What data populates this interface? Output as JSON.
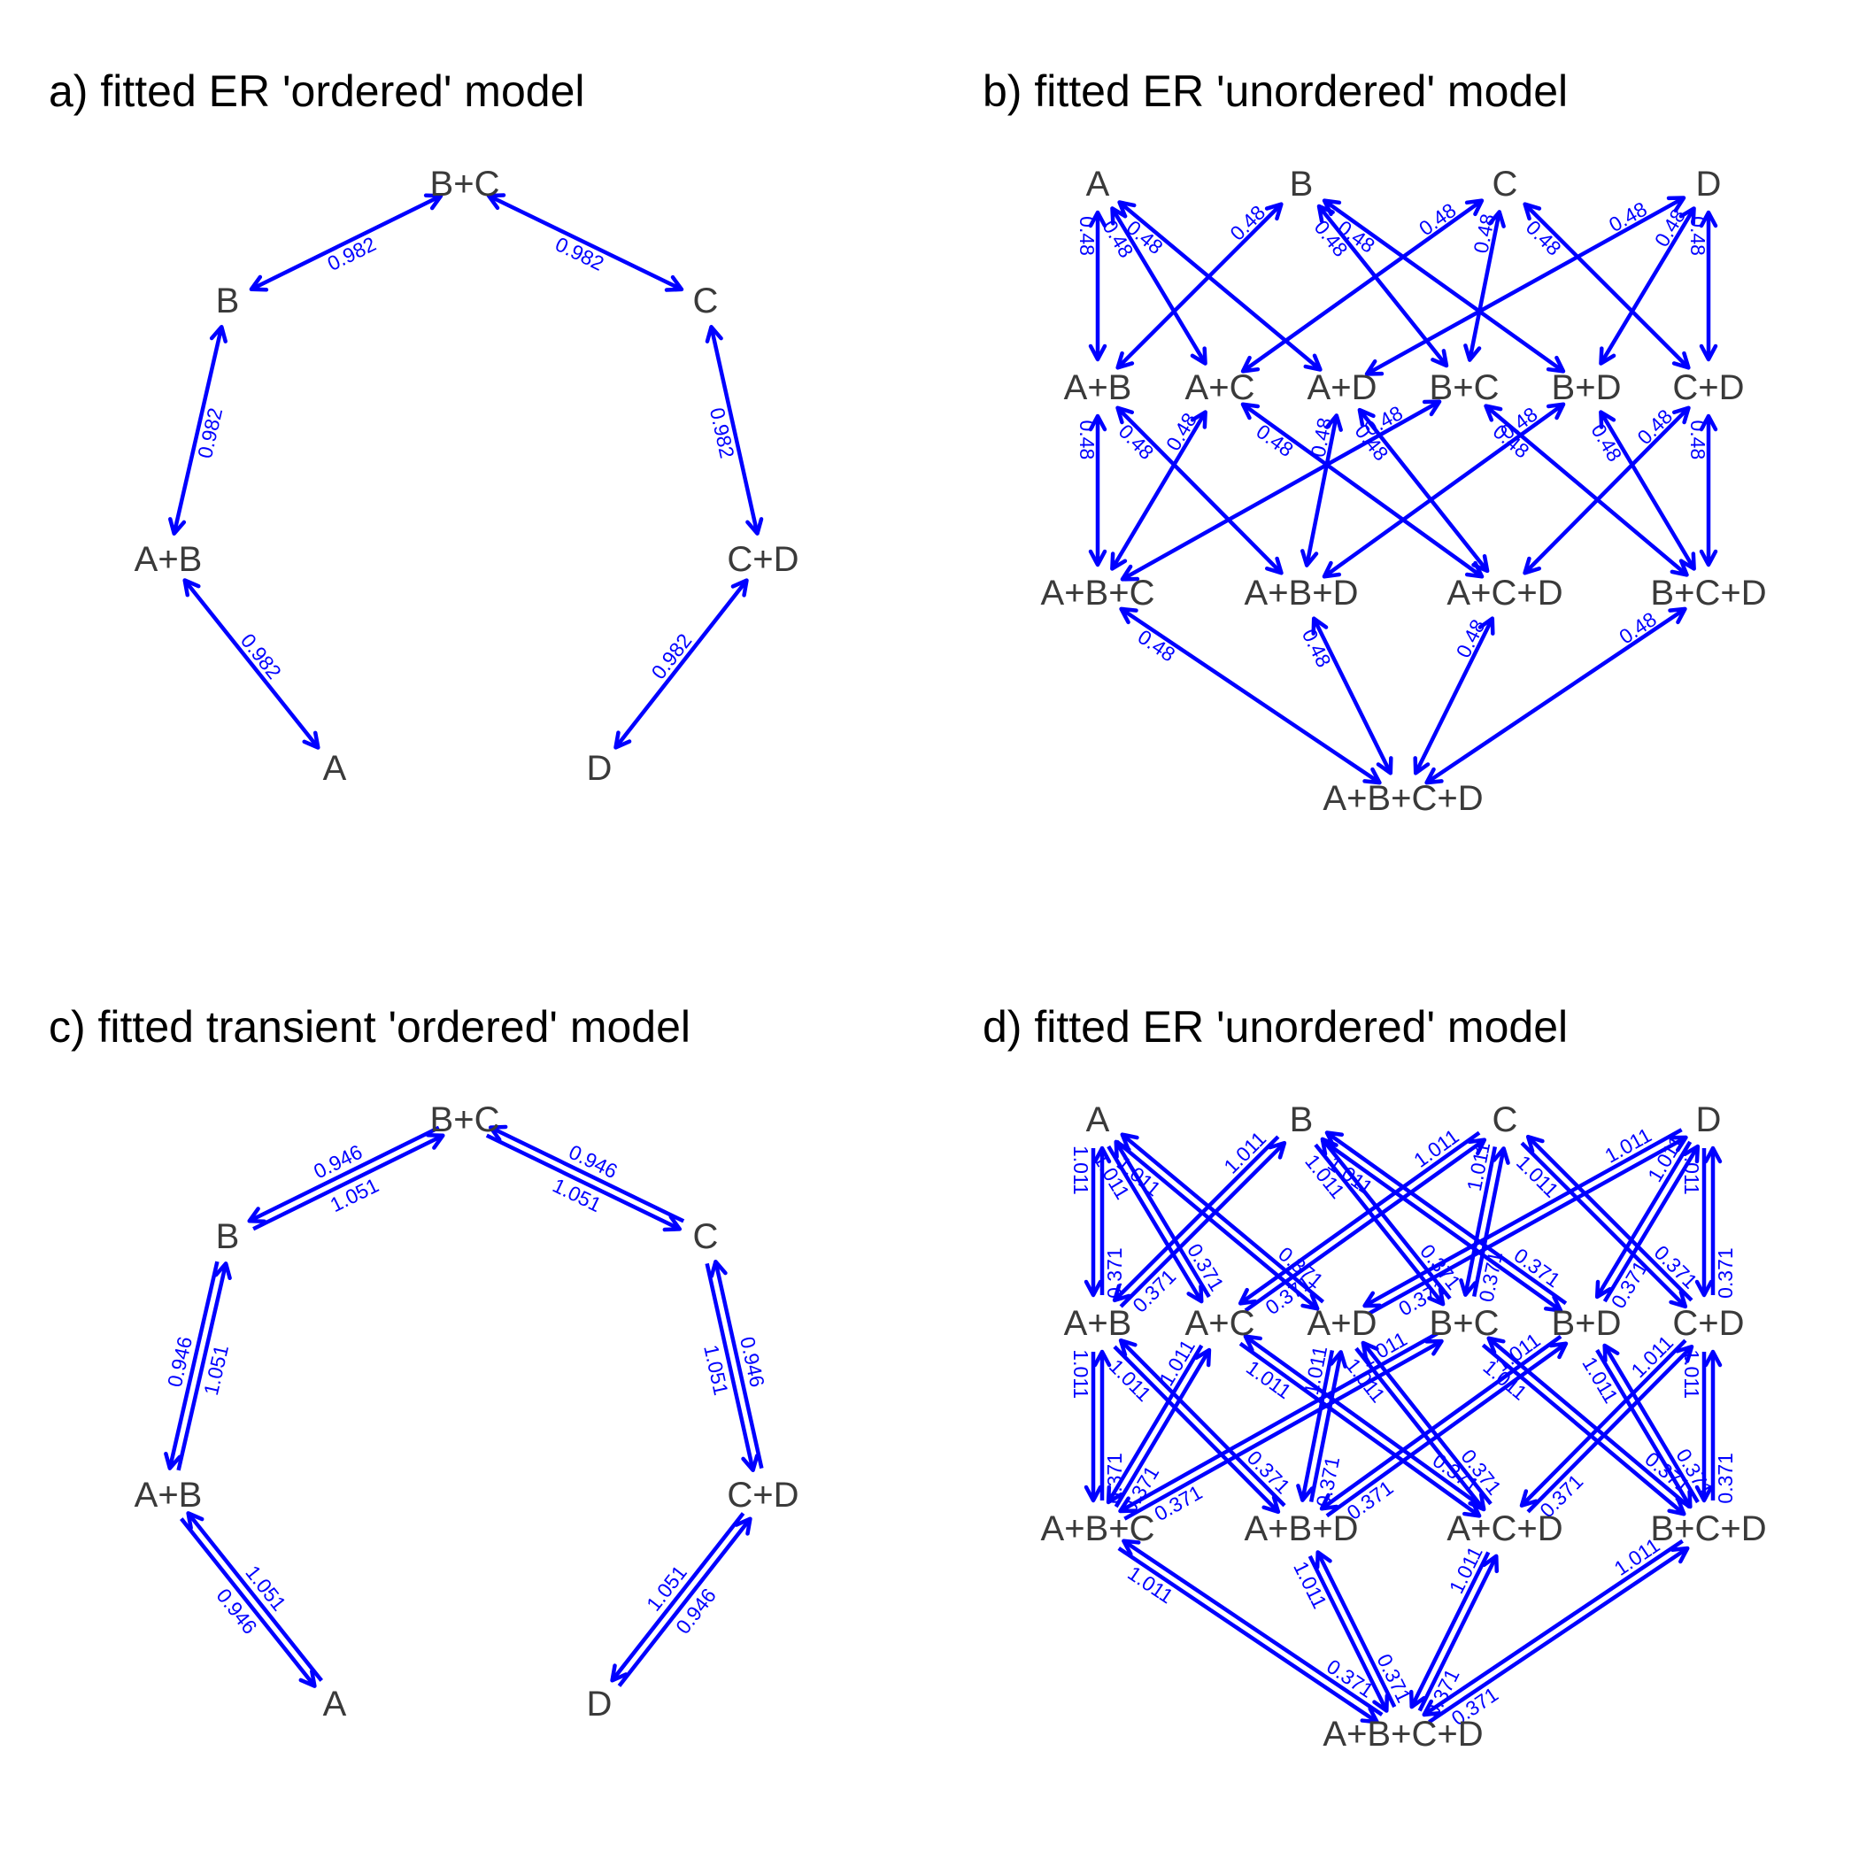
{
  "colors": {
    "edge": "#0000ff",
    "node_text": "#3a3a3a",
    "title": "#000000",
    "background": "#ffffff"
  },
  "panels": [
    {
      "title": "a) fitted ER 'ordered' model",
      "layout": "ring",
      "nodes": [
        "A",
        "A+B",
        "B",
        "B+C",
        "C",
        "C+D",
        "D"
      ],
      "edges": [
        {
          "from": "A",
          "to": "A+B",
          "label": "0.982"
        },
        {
          "from": "A+B",
          "to": "B",
          "label": "0.982"
        },
        {
          "from": "B",
          "to": "B+C",
          "label": "0.982"
        },
        {
          "from": "B+C",
          "to": "C",
          "label": "0.982"
        },
        {
          "from": "C",
          "to": "C+D",
          "label": "0.982"
        },
        {
          "from": "C+D",
          "to": "D",
          "label": "0.982"
        }
      ]
    },
    {
      "title": "b) fitted ER 'unordered' model",
      "layout": "lattice",
      "nodes": [
        "A",
        "B",
        "C",
        "D",
        "A+B",
        "A+C",
        "A+D",
        "B+C",
        "B+D",
        "C+D",
        "A+B+C",
        "A+B+D",
        "A+C+D",
        "B+C+D",
        "A+B+C+D"
      ],
      "rate_labels": [
        "0.48"
      ]
    },
    {
      "title": "c) fitted transient 'ordered' model",
      "layout": "ring",
      "nodes": [
        "A",
        "A+B",
        "B",
        "B+C",
        "C",
        "C+D",
        "D"
      ],
      "edges": [
        {
          "from": "A",
          "to": "A+B",
          "label_forward": "1.051",
          "label_back": "0.946"
        },
        {
          "from": "A+B",
          "to": "B",
          "label_forward": "1.051",
          "label_back": "0.946"
        },
        {
          "from": "B",
          "to": "B+C",
          "label_forward": "1.051",
          "label_back": "0.946"
        },
        {
          "from": "B+C",
          "to": "C",
          "label_forward": "1.051",
          "label_back": "0.946"
        },
        {
          "from": "C",
          "to": "C+D",
          "label_forward": "1.051",
          "label_back": "0.946"
        },
        {
          "from": "C+D",
          "to": "D",
          "label_forward": "1.051",
          "label_back": "0.946"
        }
      ]
    },
    {
      "title": "d) fitted ER 'unordered' model",
      "layout": "lattice",
      "nodes": [
        "A",
        "B",
        "C",
        "D",
        "A+B",
        "A+C",
        "A+D",
        "B+C",
        "B+D",
        "C+D",
        "A+B+C",
        "A+B+D",
        "A+C+D",
        "B+C+D",
        "A+B+C+D"
      ],
      "rate_labels": [
        "1.011",
        "0.371"
      ]
    }
  ]
}
